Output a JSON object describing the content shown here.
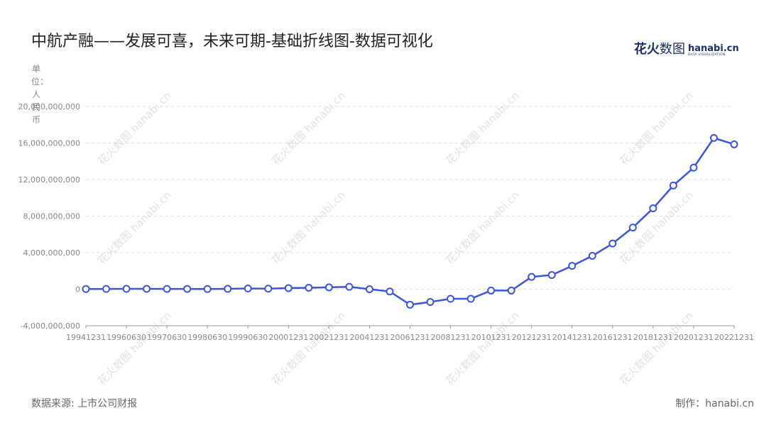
{
  "page": {
    "title": "中航产融——发展可喜，未来可期-基础折线图-数据可视化",
    "source": "数据来源: 上市公司财报",
    "credit": "制作：hanabi.cn"
  },
  "logo": {
    "cn_bold": "花火",
    "cn_thin": "数图",
    "en": "hanabi.cn",
    "sub": "DATA VISUALIZATION"
  },
  "watermark_text": "花火数图 hanabi.cn",
  "colors": {
    "line": "#3d55d8",
    "grid": "#dddddd",
    "axis": "#999999",
    "text": "#888888"
  },
  "chart_data": {
    "type": "line",
    "ylabel": "单位：人民币",
    "xlabel": "",
    "ylim": [
      -4000000000,
      20000000000
    ],
    "yticks": [
      -4000000000,
      0,
      4000000000,
      8000000000,
      12000000000,
      16000000000,
      20000000000
    ],
    "ytick_labels": [
      "-4,000,000,000",
      "0",
      "4,000,000,000",
      "8,000,000,000",
      "12,000,000,000",
      "16,000,000,000",
      "20,000,000,000"
    ],
    "grid": true,
    "legend": "none",
    "x": [
      "19941231",
      "19951231",
      "19960630",
      "19961231",
      "19970630",
      "19971231",
      "19980630",
      "19981231",
      "19990630",
      "19991231",
      "20001231",
      "20011231",
      "20021231",
      "20031231",
      "20041231",
      "20051231",
      "20061231",
      "20071231",
      "20081231",
      "20091231",
      "20101231",
      "20111231",
      "20121231",
      "20131231",
      "20141231",
      "20151231",
      "20161231",
      "20171231",
      "20181231",
      "20191231",
      "20201231",
      "20211231",
      "20221231"
    ],
    "xtick_labels_shown": [
      "19941231",
      "19960630",
      "19970630",
      "19980630",
      "19990630",
      "20001231",
      "20021231",
      "20041231",
      "20061231",
      "20081231",
      "20101231",
      "20121231",
      "20141231",
      "20161231",
      "20181231",
      "20201231",
      "20221231"
    ],
    "series": [
      {
        "values": [
          20000000,
          30000000,
          40000000,
          40000000,
          30000000,
          30000000,
          20000000,
          40000000,
          80000000,
          60000000,
          120000000,
          160000000,
          200000000,
          260000000,
          0,
          -250000000,
          -1700000000,
          -1400000000,
          -1050000000,
          -1050000000,
          -150000000,
          -150000000,
          1350000000,
          1550000000,
          2550000000,
          3650000000,
          5000000000,
          6750000000,
          8850000000,
          11350000000,
          13300000000,
          16550000000,
          15850000000
        ]
      }
    ]
  }
}
